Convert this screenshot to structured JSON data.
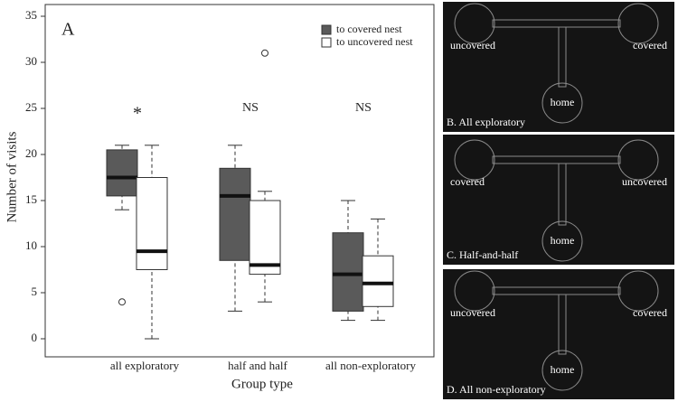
{
  "chart_data": {
    "type": "box",
    "panel_label": "A",
    "x_label": "Group type",
    "y_label": "Number of visits",
    "categories": [
      "all exploratory",
      "half and half",
      "all non-exploratory"
    ],
    "annotations": [
      "*",
      "NS",
      "NS"
    ],
    "ylim": [
      0,
      35
    ],
    "yticks": [
      0,
      5,
      10,
      15,
      20,
      25,
      30,
      35
    ],
    "legend_position": "upper right",
    "series": [
      {
        "name": "to covered nest",
        "color": "#5a5a5a",
        "values": [
          {
            "min": 14,
            "q1": 15.5,
            "median": 17.5,
            "q3": 20.5,
            "max": 21,
            "outliers": [
              4
            ]
          },
          {
            "min": 3,
            "q1": 8.5,
            "median": 15.5,
            "q3": 18.5,
            "max": 21,
            "outliers": []
          },
          {
            "min": 2,
            "q1": 3,
            "median": 7,
            "q3": 11.5,
            "max": 15,
            "outliers": []
          }
        ]
      },
      {
        "name": "to uncovered nest",
        "color": "#ffffff",
        "values": [
          {
            "min": 0,
            "q1": 7.5,
            "median": 9.5,
            "q3": 17.5,
            "max": 21,
            "outliers": []
          },
          {
            "min": 4,
            "q1": 7,
            "median": 8,
            "q3": 15,
            "max": 16,
            "outliers": [
              31
            ]
          },
          {
            "min": 2,
            "q1": 3.5,
            "median": 6,
            "q3": 9,
            "max": 13,
            "outliers": []
          }
        ]
      }
    ]
  },
  "image_panels": [
    {
      "caption": "B. All exploratory",
      "left": "uncovered",
      "right": "covered",
      "bottom": "home"
    },
    {
      "caption": "C. Half-and-half",
      "left": "covered",
      "right": "uncovered",
      "bottom": "home"
    },
    {
      "caption": "D. All non-exploratory",
      "left": "uncovered",
      "right": "covered",
      "bottom": "home"
    }
  ]
}
